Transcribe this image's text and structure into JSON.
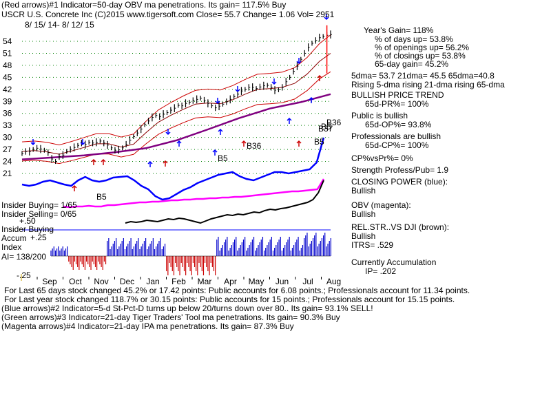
{
  "header": {
    "line1": "(Red arrows)#1 Indicator=50-day OBV ma penetrations. Its gain= 117.5% Buy",
    "line2": "USCR  U.S. Concrete Inc  (C)2015 www.tigersoft.com     Close=  55.7  Change= 1.06 Vol= 2951",
    "date_range": "8/ 15/ 14- 8/ 12/ 15"
  },
  "stats": {
    "years_gain": "Year's Gain= 118%",
    "days_up": "% of days up= 53.8%",
    "openings_up": "% of openings up= 56.2%",
    "closings_up": "% of closings up= 53.8%",
    "gain65": "65-day gain= 45.2%",
    "mas": "5dma= 53.7 21dma= 45.5 65dma=40.8",
    "rising": "Rising 5-dma rising 21-dma rising 65-dma",
    "trend": "BULLISH PRICE TREND",
    "pr": "65d-PR%= 100%",
    "public": "Public is bullish",
    "op": "65d-OP%= 93.8%",
    "pros": "Professionals are bullish",
    "cp": "65d-CP%= 100%",
    "cpvspr": "CP%vsPr%=  0%",
    "strength": "Strength Profess/Pub= 1.9",
    "closing_power": "CLOSING POWER (blue):",
    "cp_state": "Bullish",
    "obv": "OBV (magenta):",
    "obv_state": "Bullish",
    "relstr": "REL.STR..VS DJI (brown):",
    "relstr_state": "Bullish",
    "itrs": "ITRS= .529",
    "accum": "Currently Accumulation",
    "ip": "IP=  .202"
  },
  "left_labels": {
    "insider_buying": "Insider Buying= 1/65",
    "insider_selling": "Insider Selling= 0/65",
    "insider_buying2": "Insider Buying",
    "plus50": "+.50",
    "accum": "Accum",
    "plus25": "+.25",
    "index": "Index",
    "ai": "AI= 138/200",
    "minus25": "-.25"
  },
  "signals": [
    "B5",
    "B5",
    "B36",
    "B5",
    "B5",
    "B37",
    "B36"
  ],
  "footer": {
    "line1": "For Last 65 days stock changed  45.2% or  17.42 points:  Public accounts for  6.08 points.;  Professionals account for  11.34 points.",
    "line2": "For Last year stock changed  118.7% or  30.15 points:  Public accounts for  15 points.;  Professionals account for  15.15 points.",
    "line3": "(Blue arrows)#2 Indicator=5-d St-Pct-D turns up below 20/turns down over 80.. Its gain= 93.1% SELL!",
    "line4": "(Green arrows)#3 Indicator=21-day Tiger Traders' Tool ma penetrations. Its gain= 90.3% Buy",
    "line5": "(Magenta arrows)#4 Indicator=21-day IPA ma penetrations. Its gain= 87.3% Buy"
  },
  "colors": {
    "price": "#000000",
    "ma21": "#8b0000",
    "ma65": "#800080",
    "closing_power": "#0000ff",
    "obv": "#ff00ff",
    "relstr": "#000000",
    "accum_pos": "#0000cc",
    "accum_neg": "#cc0000",
    "grid": "#008000",
    "band": "#cc0000"
  },
  "chart_data": {
    "type": "line",
    "title": "USCR  U.S. Concrete Inc",
    "x_ticks": [
      "Sep",
      "Oct",
      "Nov",
      "Dec",
      "Jan",
      "Feb",
      "Mar",
      "Apr",
      "May",
      "Jun",
      "Jul",
      "Aug"
    ],
    "y_ticks": [
      21,
      24,
      27,
      30,
      33,
      36,
      39,
      42,
      45,
      48,
      51,
      54
    ],
    "ylim": [
      19,
      56
    ],
    "grid": true,
    "series": [
      {
        "x": [
          0,
          3,
          6,
          9,
          12,
          15,
          18,
          21,
          24,
          27,
          30,
          33,
          36,
          39,
          42,
          45,
          48,
          51,
          54,
          57,
          60,
          63,
          66,
          69,
          72,
          75,
          78,
          81,
          84,
          87,
          90,
          93,
          96,
          99,
          102,
          105,
          108,
          111,
          114,
          117,
          120,
          123,
          126,
          129,
          132,
          135,
          138,
          141,
          144,
          147,
          150,
          153,
          156,
          159,
          162,
          165,
          168,
          171,
          174,
          177,
          180,
          183,
          186,
          189,
          192,
          195,
          198,
          201,
          204,
          207,
          210,
          213,
          216,
          219,
          222,
          225,
          228,
          231,
          234,
          237,
          240,
          243,
          246,
          249
        ],
        "values": [
          26,
          26.5,
          26.5,
          27,
          27.3,
          27.1,
          26.8,
          26.2,
          24.6,
          24,
          25.2,
          25.6,
          26.5,
          27,
          27.5,
          28,
          28.6,
          28.2,
          28.8,
          28.6,
          28.8,
          29.1,
          28.6,
          28.1,
          27.4,
          26.8,
          26.9,
          27.4,
          28.3,
          29.3,
          30.2,
          31.1,
          32.1,
          33.2,
          34.1,
          35,
          35.5,
          35.2,
          35.8,
          36.2,
          36.8,
          37.3,
          38,
          37.9,
          38.5,
          38.8,
          39.2,
          39.5,
          39.8,
          39.3,
          38.5,
          37.9,
          37.4,
          37.8,
          38.3,
          38.9,
          39.5,
          40.2,
          40.8,
          41.6,
          42,
          42.5,
          42.5,
          42.2,
          42.6,
          42.9,
          43,
          42.5,
          41.8,
          41.9,
          42.5,
          43.9,
          45,
          46.5,
          47.8,
          49.5,
          51,
          52.5,
          53.5,
          54.2,
          54.9,
          55.2,
          55.5,
          55.7
        ]
      },
      {
        "x": [
          0,
          10,
          20,
          30,
          40,
          50,
          60,
          70,
          80,
          90,
          100,
          110,
          120,
          130,
          140,
          150,
          160,
          170,
          180,
          190,
          200,
          210,
          220,
          230,
          240,
          249
        ],
        "values": [
          26.5,
          26.7,
          26.4,
          25.8,
          26.6,
          27.5,
          28.4,
          28.4,
          27.6,
          28.3,
          31.2,
          33.8,
          35.5,
          37,
          38.3,
          38.6,
          38.4,
          39.4,
          40.8,
          42,
          42.2,
          42.5,
          43.5,
          45.8,
          49,
          51
        ]
      },
      {
        "x": [
          0,
          25,
          50,
          75,
          100,
          125,
          150,
          175,
          200,
          225,
          249
        ],
        "values": [
          24.5,
          25,
          25.5,
          26.3,
          27.3,
          29.3,
          32,
          34.8,
          37.2,
          38.8,
          40.8
        ]
      }
    ]
  }
}
